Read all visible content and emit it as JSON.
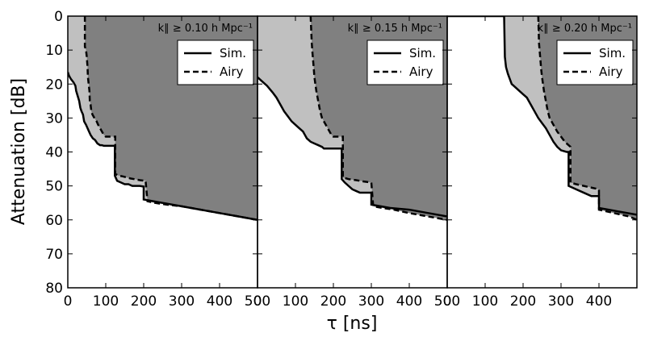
{
  "chart_data": {
    "type": "area",
    "ylabel": "Attenuation [dB]",
    "xlabel": "τ [ns]",
    "xlim": [
      0,
      500
    ],
    "ylim": [
      80,
      0
    ],
    "x_ticks": [
      0,
      100,
      200,
      300,
      400
    ],
    "y_ticks": [
      0,
      10,
      20,
      30,
      40,
      50,
      60,
      70,
      80
    ],
    "grid": false,
    "legend_placement": "upper-right",
    "colors": {
      "sim_fill": "#808080",
      "airy_fill": "#c0c0c0",
      "line": "#000000"
    },
    "panels": [
      {
        "condition": "k∥ ≥ 0.10 h Mpc⁻¹",
        "legend": [
          "Sim.",
          "Airy"
        ],
        "series": [
          {
            "name": "Sim.",
            "style": "solid",
            "x": [
              0,
              3,
              8,
              15,
              20,
              22,
              26,
              30,
              33,
              36,
              40,
              43,
              48,
              52,
              56,
              60,
              66,
              72,
              78,
              85,
              90,
              95,
              105,
              115,
              120,
              124,
              124,
              130,
              140,
              150,
              160,
              170,
              180,
              190,
              200,
              200,
              250,
              300,
              350,
              400,
              450,
              500
            ],
            "y": [
              16.5,
              17.5,
              18.5,
              19.5,
              20.5,
              22,
              23.5,
              25,
              27,
              28,
              29,
              31,
              32,
              33,
              34,
              35,
              36,
              36.5,
              37.5,
              38,
              38,
              38.2,
              38.2,
              38.2,
              38.2,
              38.2,
              47,
              48.5,
              49,
              49.5,
              49.5,
              50,
              50,
              50,
              50.2,
              54,
              55,
              56,
              57,
              58,
              59,
              60
            ]
          },
          {
            "name": "Airy",
            "style": "dashed",
            "x": [
              45,
              45,
              48,
              50,
              52,
              53,
              55,
              57,
              58,
              60,
              62,
              65,
              70,
              76,
              80,
              85,
              90,
              95,
              100,
              110,
              120,
              125,
              125,
              135,
              145,
              155,
              165,
              175,
              190,
              205,
              210,
              230,
              260,
              300,
              350,
              400,
              450,
              500
            ],
            "y": [
              0,
              9,
              10,
              12,
              15,
              18,
              20,
              22,
              25,
              26,
              28,
              29,
              30,
              31,
              32,
              33,
              34,
              35,
              35.5,
              35.5,
              35.5,
              35.5,
              46.5,
              47,
              47.2,
              47.5,
              47.8,
              48,
              48.3,
              48.5,
              54.5,
              55,
              55.5,
              56,
              57,
              58,
              59,
              60
            ]
          }
        ]
      },
      {
        "condition": "k∥ ≥ 0.15 h Mpc⁻¹",
        "legend": [
          "Sim.",
          "Airy"
        ],
        "series": [
          {
            "name": "Sim.",
            "style": "solid",
            "x": [
              0,
              10,
              25,
              40,
              50,
              60,
              70,
              80,
              90,
              100,
              110,
              120,
              125,
              130,
              140,
              150,
              160,
              170,
              175,
              180,
              190,
              200,
              210,
              220,
              222,
              222,
              230,
              240,
              250,
              260,
              270,
              280,
              290,
              300,
              300,
              350,
              400,
              450,
              500
            ],
            "y": [
              18,
              19,
              20.5,
              22.5,
              24,
              26,
              28,
              29.5,
              31,
              32,
              33,
              34,
              35,
              36,
              37,
              37.5,
              38,
              38.5,
              39,
              39,
              39,
              39,
              39,
              39,
              39,
              48,
              49,
              50,
              51,
              51.5,
              52,
              52,
              52,
              52,
              55.5,
              56.5,
              57,
              58,
              59
            ]
          },
          {
            "name": "Airy",
            "style": "dashed",
            "x": [
              140,
              143,
              145,
              148,
              150,
              155,
              160,
              165,
              170,
              175,
              180,
              185,
              190,
              195,
              200,
              210,
              220,
              225,
              225,
              240,
              260,
              280,
              300,
              305,
              330,
              360,
              400,
              450,
              500
            ],
            "y": [
              0,
              8,
              11,
              15,
              18,
              22,
              25,
              28,
              30,
              31,
              32,
              33,
              34,
              35,
              35.5,
              35.5,
              35.5,
              35.5,
              47.5,
              48,
              48.3,
              48.7,
              49,
              56,
              56.5,
              57,
              58,
              59,
              60
            ]
          }
        ]
      },
      {
        "condition": "k∥ ≥ 0.20 h Mpc⁻¹",
        "legend": [
          "Sim.",
          "Airy"
        ],
        "series": [
          {
            "name": "Sim.",
            "style": "solid",
            "x": [
              0,
              100,
              150,
              152,
              155,
              160,
              165,
              170,
              180,
              190,
              200,
              210,
              220,
              230,
              240,
              250,
              260,
              270,
              280,
              290,
              300,
              315,
              320,
              320,
              340,
              360,
              380,
              400,
              400,
              450,
              500
            ],
            "y": [
              0,
              0,
              0,
              12,
              15,
              17,
              18.5,
              20,
              21,
              22,
              23,
              24,
              26,
              28,
              30,
              31.5,
              33,
              35,
              37,
              38.5,
              39.5,
              40,
              40,
              50,
              51,
              52,
              53,
              53,
              56.5,
              57.5,
              58.5
            ]
          },
          {
            "name": "Airy",
            "style": "dashed",
            "x": [
              240,
              242,
              245,
              248,
              250,
              255,
              260,
              265,
              270,
              280,
              290,
              300,
              310,
              325,
              325,
              340,
              360,
              380,
              400,
              400,
              440,
              480,
              500
            ],
            "y": [
              0,
              8,
              12,
              16,
              18,
              22,
              25,
              28,
              30,
              32,
              34,
              35.5,
              37,
              38.5,
              49,
              49.5,
              50,
              50.5,
              51,
              57,
              58,
              59,
              60
            ]
          }
        ]
      }
    ]
  }
}
